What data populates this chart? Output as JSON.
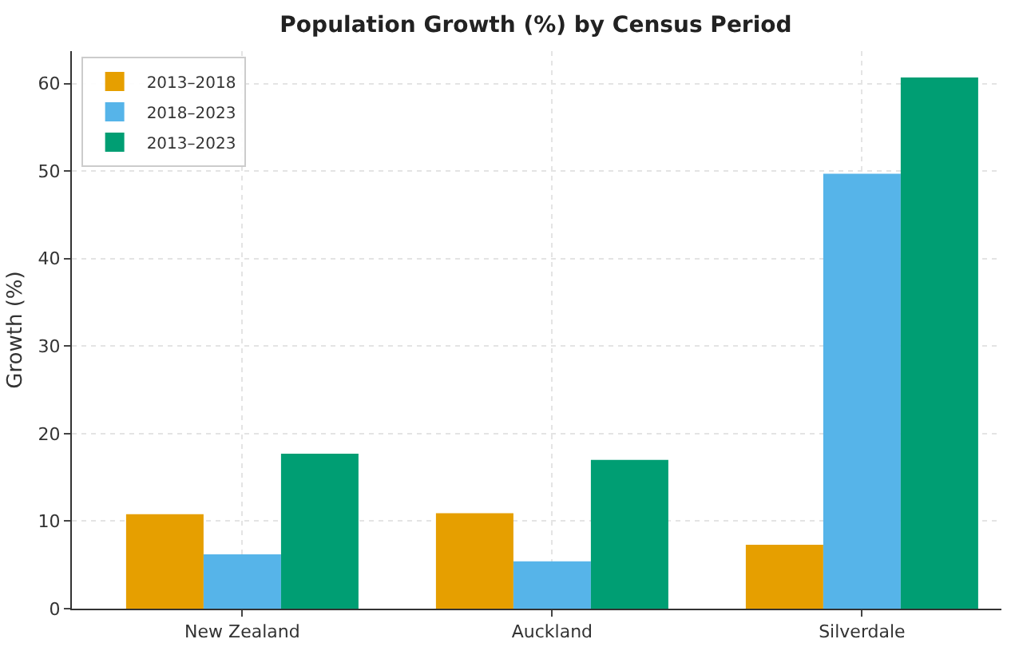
{
  "chart_data": {
    "type": "bar",
    "title": "Population Growth (%) by Census Period",
    "ylabel": "Growth (%)",
    "categories": [
      "New Zealand",
      "Auckland",
      "Silverdale"
    ],
    "series": [
      {
        "name": "2013–2018",
        "color": "#e69f00",
        "values": [
          10.8,
          10.9,
          7.3
        ]
      },
      {
        "name": "2018–2023",
        "color": "#56b4e9",
        "values": [
          6.2,
          5.4,
          49.7
        ]
      },
      {
        "name": "2013–2023",
        "color": "#009e73",
        "values": [
          17.7,
          17.0,
          60.7
        ]
      }
    ],
    "ylim": [
      0,
      63.7
    ],
    "yticks": [
      0,
      10,
      20,
      30,
      40,
      50,
      60
    ],
    "grid": true,
    "legend": "top left"
  }
}
